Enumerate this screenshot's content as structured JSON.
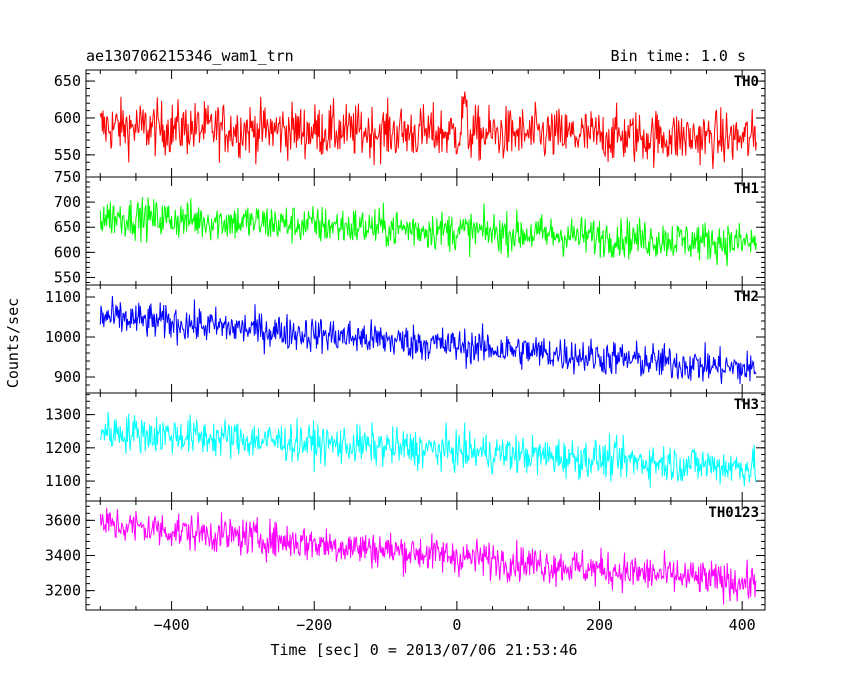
{
  "header": {
    "title": "ae130706215346_wam1_trn",
    "bin_time": "Bin time: 1.0 s"
  },
  "chart_data": {
    "type": "line",
    "title": "ae130706215346_wam1_trn",
    "xlabel": "Time [sec] 0 = 2013/07/06 21:53:46",
    "ylabel": "Counts/sec",
    "xlim": [
      -520,
      432
    ],
    "x_ticks": [
      -400,
      -200,
      0,
      200,
      400
    ],
    "x_tick_labels": [
      "−400",
      "−200",
      "0",
      "200",
      "400"
    ],
    "data_x_range": [
      -500,
      420
    ],
    "legend": "none",
    "grid": false,
    "series": [
      {
        "name": "TH0",
        "color": "#ff0000",
        "ylim": [
          520,
          665
        ],
        "y_ticks": [
          550,
          600,
          650
        ],
        "y_tick_labels": [
          "550",
          "600",
          "650"
        ],
        "trend_start": 588,
        "trend_end": 572,
        "noise": 26,
        "spike_at": 10,
        "spike_value": 640
      },
      {
        "name": "TH1",
        "color": "#00ff00",
        "ylim": [
          535,
          750
        ],
        "y_ticks": [
          550,
          600,
          650,
          700,
          750
        ],
        "y_tick_labels": [
          "550",
          "600",
          "650",
          "700",
          "750"
        ],
        "trend_start": 672,
        "trend_end": 618,
        "noise": 28
      },
      {
        "name": "TH2",
        "color": "#0000ff",
        "ylim": [
          860,
          1130
        ],
        "y_ticks": [
          900,
          1000,
          1100
        ],
        "y_tick_labels": [
          "900",
          "1000",
          "1100"
        ],
        "trend_start": 1050,
        "trend_end": 918,
        "noise": 32
      },
      {
        "name": "TH3",
        "color": "#00ffff",
        "ylim": [
          1040,
          1365
        ],
        "y_ticks": [
          1100,
          1200,
          1300
        ],
        "y_tick_labels": [
          "1100",
          "1200",
          "1300"
        ],
        "trend_start": 1250,
        "trend_end": 1140,
        "noise": 42
      },
      {
        "name": "TH0123",
        "color": "#ff00ff",
        "ylim": [
          3090,
          3710
        ],
        "y_ticks": [
          3200,
          3400,
          3600
        ],
        "y_tick_labels": [
          "3200",
          "3400",
          "3600"
        ],
        "trend_start": 3580,
        "trend_end": 3240,
        "noise": 75
      }
    ]
  }
}
